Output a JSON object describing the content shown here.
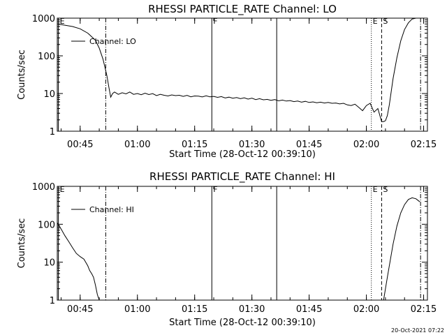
{
  "footer": {
    "timestamp": "20-Oct-2021 07:22"
  },
  "chart_data": [
    {
      "type": "line",
      "title": "RHESSI PARTICLE_RATE Channel: LO",
      "xlabel": "Start Time (28-Oct-12 00:39:10)",
      "ylabel": "Counts/sec",
      "yscale": "log",
      "xlim": [
        0.0,
        97.0
      ],
      "ylim": [
        1,
        1000
      ],
      "x_ticks": [
        {
          "x": 6.0,
          "label": "00:45"
        },
        {
          "x": 21.0,
          "label": "01:00"
        },
        {
          "x": 36.0,
          "label": "01:15"
        },
        {
          "x": 51.0,
          "label": "01:30"
        },
        {
          "x": 66.0,
          "label": "01:45"
        },
        {
          "x": 81.0,
          "label": "02:00"
        },
        {
          "x": 96.0,
          "label": "02:15"
        }
      ],
      "y_ticks": [
        {
          "y": 1,
          "label": "1"
        },
        {
          "y": 10,
          "label": "10"
        },
        {
          "y": 100,
          "label": "100"
        },
        {
          "y": 1000,
          "label": "1000"
        }
      ],
      "legend": {
        "label": "Channel: LO",
        "placement": "top-left"
      },
      "series": [
        {
          "name": "Channel: LO",
          "x": [
            0,
            2,
            4,
            6,
            8,
            10,
            11,
            12,
            13,
            13.5,
            14,
            14.5,
            15,
            16,
            17,
            18,
            19,
            20,
            21,
            22,
            23,
            24,
            25,
            26,
            27,
            28,
            29,
            30,
            31,
            32,
            33,
            34,
            35,
            36,
            37,
            38,
            39,
            40,
            41,
            42,
            43,
            44,
            45,
            46,
            47,
            48,
            49,
            50,
            51,
            52,
            53,
            54,
            55,
            56,
            57,
            58,
            59,
            60,
            61,
            62,
            63,
            64,
            65,
            66,
            67,
            68,
            69,
            70,
            71,
            72,
            73,
            74,
            75,
            76,
            77,
            78,
            79,
            80,
            81,
            82,
            83,
            84,
            85,
            85.5,
            86,
            86.5,
            87,
            88,
            89,
            90,
            91,
            92,
            93,
            94,
            95,
            96
          ],
          "y": [
            700,
            650,
            600,
            520,
            400,
            260,
            160,
            80,
            30,
            15,
            8,
            10,
            11,
            9.5,
            10.5,
            9.8,
            11,
            9.5,
            10,
            9.3,
            10.2,
            9.4,
            9.9,
            8.8,
            9.5,
            9.0,
            8.6,
            9.2,
            8.8,
            9.0,
            8.4,
            8.9,
            8.2,
            8.6,
            8.5,
            8.1,
            8.7,
            8.2,
            8.4,
            7.9,
            8.3,
            7.6,
            8.0,
            7.5,
            7.8,
            7.3,
            7.7,
            7.1,
            7.5,
            6.9,
            7.3,
            6.8,
            7.0,
            6.6,
            6.9,
            6.4,
            6.7,
            6.3,
            6.5,
            6.1,
            6.3,
            5.9,
            6.2,
            5.8,
            6.0,
            5.7,
            5.9,
            5.6,
            5.8,
            5.5,
            5.6,
            5.3,
            5.5,
            5.0,
            4.8,
            5.2,
            4.3,
            3.5,
            4.8,
            5.5,
            3.2,
            4.0,
            1.8,
            1.8,
            1.9,
            2.6,
            5.0,
            25,
            90,
            250,
            500,
            750,
            950,
            1000,
            1000,
            1000
          ]
        }
      ],
      "markers": [
        {
          "x": 0.3,
          "style": "solid",
          "label": "E"
        },
        {
          "x": 12.7,
          "style": "dashdot",
          "label": ""
        },
        {
          "x": 40.5,
          "style": "solid",
          "label": "F"
        },
        {
          "x": 57.5,
          "style": "solid",
          "label": ""
        },
        {
          "x": 82.3,
          "style": "dotted",
          "label": "E"
        },
        {
          "x": 85.0,
          "style": "dashed",
          "label": "S"
        },
        {
          "x": 95.2,
          "style": "dashdot",
          "label": ""
        }
      ]
    },
    {
      "type": "line",
      "title": "RHESSI PARTICLE_RATE Channel: HI",
      "xlabel": "Start Time (28-Oct-12 00:39:10)",
      "ylabel": "Counts/sec",
      "yscale": "log",
      "xlim": [
        0.0,
        97.0
      ],
      "ylim": [
        1,
        1000
      ],
      "x_ticks": [
        {
          "x": 6.0,
          "label": "00:45"
        },
        {
          "x": 21.0,
          "label": "01:00"
        },
        {
          "x": 36.0,
          "label": "01:15"
        },
        {
          "x": 51.0,
          "label": "01:30"
        },
        {
          "x": 66.0,
          "label": "01:45"
        },
        {
          "x": 81.0,
          "label": "02:00"
        },
        {
          "x": 96.0,
          "label": "02:15"
        }
      ],
      "y_ticks": [
        {
          "y": 1,
          "label": "1"
        },
        {
          "y": 10,
          "label": "10"
        },
        {
          "y": 100,
          "label": "100"
        },
        {
          "y": 1000,
          "label": "1000"
        }
      ],
      "legend": {
        "label": "Channel: HI",
        "placement": "top-left"
      },
      "series": [
        {
          "name": "Channel: HI",
          "x": [
            0,
            1,
            2,
            3,
            4,
            5,
            6,
            7,
            8,
            8.5,
            9,
            9.5,
            10,
            10.5,
            11
          ],
          "y": [
            110,
            75,
            50,
            35,
            24,
            17,
            14,
            12,
            8,
            6,
            5,
            4,
            2.5,
            1.4,
            1.0
          ]
        },
        {
          "name": "Channel: HI",
          "x": [
            85.5,
            86,
            86.5,
            87,
            88,
            89,
            90,
            91,
            92,
            93,
            94,
            95
          ],
          "y": [
            1.0,
            2.0,
            4,
            8,
            30,
            90,
            200,
            330,
            450,
            500,
            470,
            390
          ]
        }
      ],
      "markers": [
        {
          "x": 0.3,
          "style": "solid",
          "label": "E"
        },
        {
          "x": 12.7,
          "style": "dashdot",
          "label": ""
        },
        {
          "x": 40.5,
          "style": "solid",
          "label": "F"
        },
        {
          "x": 57.5,
          "style": "solid",
          "label": ""
        },
        {
          "x": 82.3,
          "style": "dotted",
          "label": "E"
        },
        {
          "x": 85.0,
          "style": "dashed",
          "label": "S"
        },
        {
          "x": 95.2,
          "style": "dashdot",
          "label": ""
        }
      ]
    }
  ]
}
